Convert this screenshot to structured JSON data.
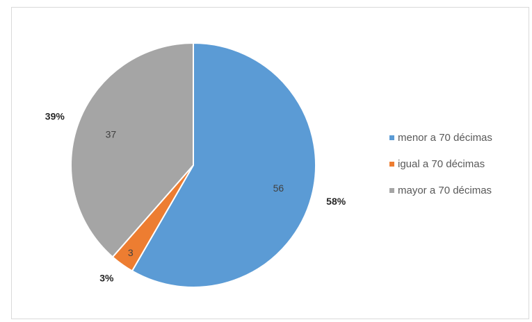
{
  "chart_data": {
    "type": "pie",
    "categories": [
      "menor a 70 décimas",
      "igual a 70 décimas",
      "mayor a 70 décimas"
    ],
    "values": [
      56,
      3,
      37
    ],
    "percent_labels": [
      "58%",
      "3%",
      "39%"
    ],
    "colors": [
      "#5b9bd5",
      "#ed7d31",
      "#a5a5a5"
    ],
    "start_angle_deg": 0,
    "direction": "clockwise",
    "legend_position": "right",
    "title": ""
  }
}
